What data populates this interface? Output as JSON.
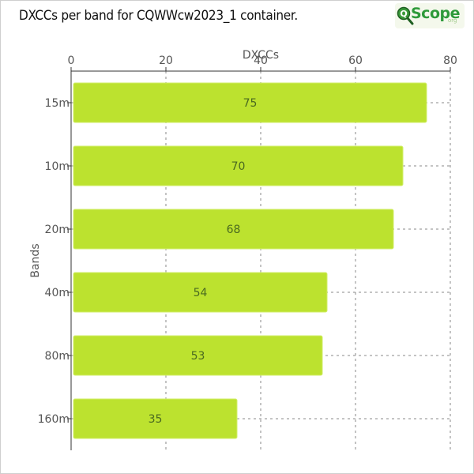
{
  "title": "DXCCs per band for CQWWcw2023_1 container.",
  "logo": {
    "text": "Scope",
    "suffix": "org",
    "icon": "magnifier-q-icon"
  },
  "colors": {
    "bar": "#bce22f",
    "bar_stroke": "#d2ee6a",
    "grid": "#8a8a8a",
    "axis": "#333333"
  },
  "chart_data": {
    "type": "bar",
    "orientation": "horizontal",
    "title": "DXCCs per band for CQWWcw2023_1 container.",
    "xlabel": "DXCCs",
    "ylabel": "Bands",
    "xaxis_position": "top",
    "xlim": [
      0,
      80
    ],
    "xticks": [
      0,
      20,
      40,
      60,
      80
    ],
    "categories": [
      "15m",
      "10m",
      "20m",
      "40m",
      "80m",
      "160m"
    ],
    "values": [
      75,
      70,
      68,
      54,
      53,
      35
    ],
    "grid": true
  }
}
